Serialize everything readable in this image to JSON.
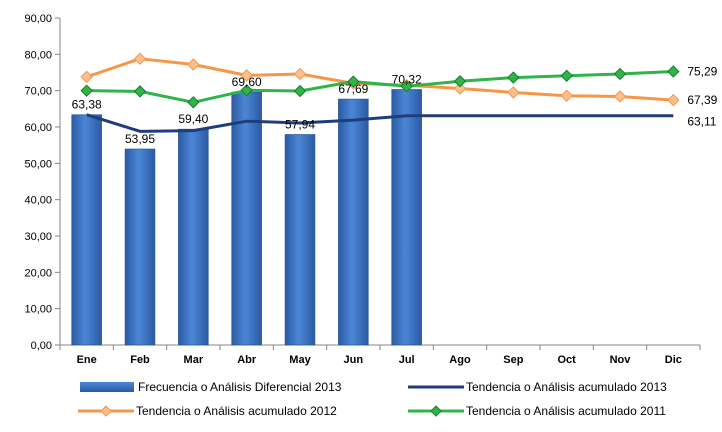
{
  "chart_data": {
    "type": "bar",
    "title": "",
    "xlabel": "",
    "ylabel": "",
    "categories": [
      "Ene",
      "Feb",
      "Mar",
      "Abr",
      "May",
      "Jun",
      "Jul",
      "Ago",
      "Sep",
      "Oct",
      "Nov",
      "Dic"
    ],
    "ylim": [
      0,
      90
    ],
    "yticks": [
      "0,00",
      "10,00",
      "20,00",
      "30,00",
      "40,00",
      "50,00",
      "60,00",
      "70,00",
      "80,00",
      "90,00"
    ],
    "grid": false,
    "legend_position": "bottom",
    "series": [
      {
        "name": "Frecuencia o Análisis Diferencial 2013",
        "type": "bar",
        "color": "#3a73c4",
        "values": [
          63.38,
          53.95,
          59.4,
          69.6,
          57.94,
          67.69,
          70.32,
          null,
          null,
          null,
          null,
          null
        ],
        "labels": [
          "63,38",
          "53,95",
          "59,40",
          "69,60",
          "57,94",
          "67,69",
          "70,32",
          "",
          "",
          "",
          "",
          ""
        ]
      },
      {
        "name": "Tendencia o Análisis acumulado 2013",
        "type": "line",
        "color": "#1f3d7a",
        "marker": "none",
        "values": [
          63.38,
          58.8,
          59.0,
          61.6,
          61.1,
          61.9,
          63.1,
          63.11,
          63.11,
          63.11,
          63.11,
          63.11
        ],
        "end_label": "63,11"
      },
      {
        "name": "Tendencia o Análisis acumulado 2012",
        "type": "line",
        "color": "#f79646",
        "marker": "diamond",
        "values": [
          73.8,
          78.8,
          77.2,
          74.2,
          74.6,
          72.0,
          71.5,
          70.6,
          69.5,
          68.6,
          68.4,
          67.39
        ],
        "end_label": "67,39"
      },
      {
        "name": "Tendencia o Análisis acumulado 2011",
        "type": "line",
        "color": "#2fb447",
        "marker": "diamond",
        "values": [
          70.0,
          69.8,
          66.8,
          70.1,
          69.9,
          72.5,
          71.2,
          72.6,
          73.6,
          74.1,
          74.6,
          75.29
        ],
        "end_label": "75,29"
      }
    ]
  }
}
